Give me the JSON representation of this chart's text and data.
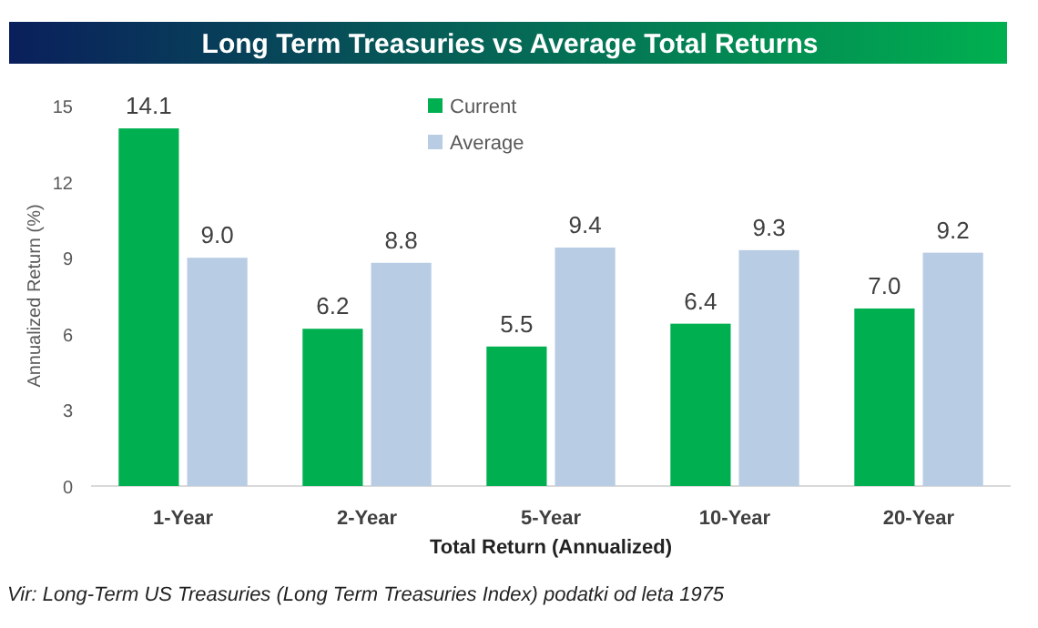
{
  "chart_data": {
    "type": "bar",
    "title": "Long Term Treasuries vs Average Total Returns",
    "xlabel": "Total Return (Annualized)",
    "ylabel": "Annualized Return (%)",
    "categories": [
      "1-Year",
      "2-Year",
      "5-Year",
      "10-Year",
      "20-Year"
    ],
    "series": [
      {
        "name": "Current",
        "color": "#00b050",
        "values": [
          14.1,
          6.2,
          5.5,
          6.4,
          7.0
        ],
        "value_labels": [
          "14.1",
          "6.2",
          "5.5",
          "6.4",
          "7.0"
        ]
      },
      {
        "name": "Average",
        "color": "#b8cce4",
        "values": [
          9.0,
          8.8,
          9.4,
          9.3,
          9.2
        ],
        "value_labels": [
          "9.0",
          "8.8",
          "9.4",
          "9.3",
          "9.2"
        ]
      }
    ],
    "ylim": [
      0,
      15
    ],
    "yticks": [
      0,
      3,
      6,
      9,
      12,
      15
    ],
    "legend": "top",
    "grid": false,
    "annotations": [
      "Vir: Long-Term US Treasuries (Long Term Treasuries Index) podatki od leta 1975"
    ]
  }
}
